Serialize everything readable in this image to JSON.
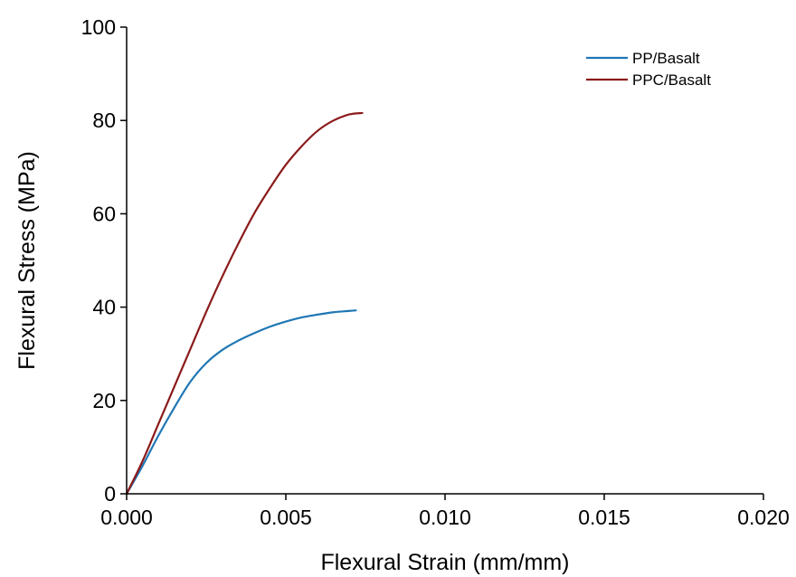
{
  "chart_data": {
    "type": "line",
    "title": "",
    "xlabel": "Flexural Strain (mm/mm)",
    "ylabel": "Flexural Stress (MPa)",
    "xlim": [
      0,
      0.02
    ],
    "ylim": [
      0,
      100
    ],
    "xticks": [
      0,
      0.005,
      0.01,
      0.015,
      0.02
    ],
    "xtick_labels": [
      "0.000",
      "0.005",
      "0.010",
      "0.015",
      "0.020"
    ],
    "yticks": [
      0,
      20,
      40,
      60,
      80,
      100
    ],
    "ytick_labels": [
      "0",
      "20",
      "40",
      "60",
      "80",
      "100"
    ],
    "grid": false,
    "legend_position": "top-right",
    "series": [
      {
        "name": "PP/Basalt",
        "color": "#1f77b4",
        "x": [
          0,
          0.0005,
          0.001,
          0.0015,
          0.002,
          0.0025,
          0.003,
          0.0035,
          0.004,
          0.0045,
          0.005,
          0.0055,
          0.006,
          0.0065,
          0.007,
          0.0072
        ],
        "y": [
          0,
          6,
          12.5,
          18.5,
          24,
          28,
          30.8,
          32.8,
          34.4,
          35.8,
          36.9,
          37.8,
          38.4,
          38.9,
          39.2,
          39.3
        ]
      },
      {
        "name": "PPC/Basalt",
        "color": "#8b1a1a",
        "x": [
          0,
          0.0005,
          0.001,
          0.0015,
          0.002,
          0.0025,
          0.003,
          0.0035,
          0.004,
          0.0045,
          0.005,
          0.0055,
          0.006,
          0.0065,
          0.007,
          0.0074
        ],
        "y": [
          0,
          7,
          15,
          23,
          31,
          39,
          46.5,
          53.5,
          60,
          65.5,
          70.5,
          74.5,
          77.8,
          80,
          81.3,
          81.6
        ]
      }
    ]
  }
}
